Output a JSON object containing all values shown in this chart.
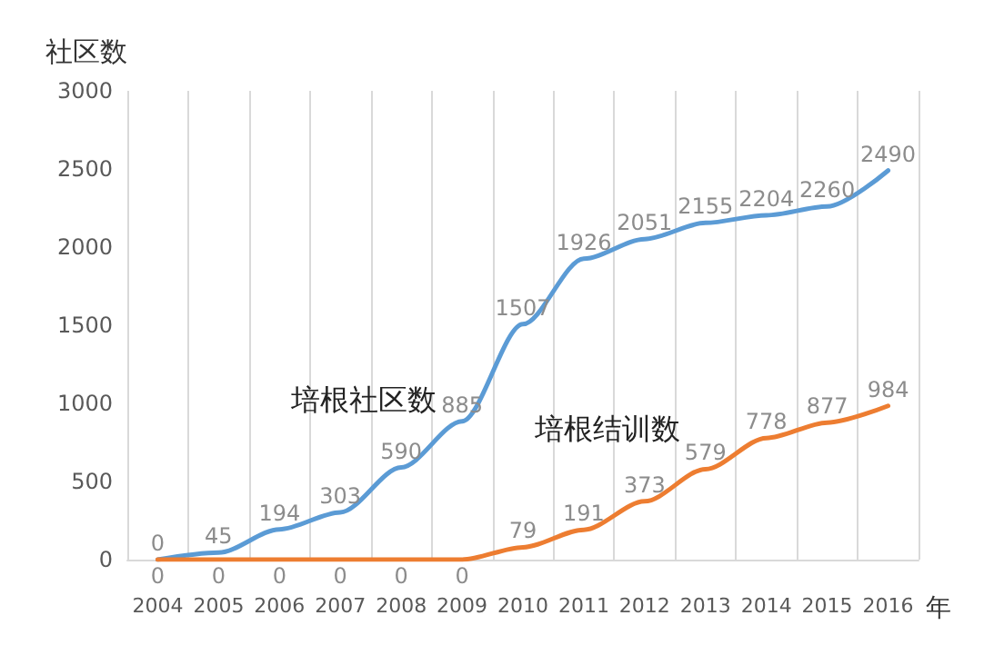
{
  "chart_data": {
    "type": "line",
    "xlabel": "年",
    "ylabel": "社区数",
    "categories": [
      "2004",
      "2005",
      "2006",
      "2007",
      "2008",
      "2009",
      "2010",
      "2011",
      "2012",
      "2013",
      "2014",
      "2015",
      "2016"
    ],
    "series": [
      {
        "name": "培根社区数",
        "color": "#5b9bd5",
        "values": [
          0,
          45,
          194,
          303,
          590,
          885,
          1507,
          1926,
          2051,
          2155,
          2204,
          2260,
          2490
        ]
      },
      {
        "name": "培根结训数",
        "color": "#ed7d31",
        "values": [
          0,
          0,
          0,
          0,
          0,
          0,
          79,
          191,
          373,
          579,
          778,
          877,
          984
        ]
      }
    ],
    "ylim": [
      0,
      3000
    ],
    "yticks": [
      0,
      500,
      1000,
      1500,
      2000,
      2500,
      3000
    ],
    "grid": "x",
    "legend": false,
    "data_labels": true,
    "marker": "none",
    "line_style": "solid"
  }
}
